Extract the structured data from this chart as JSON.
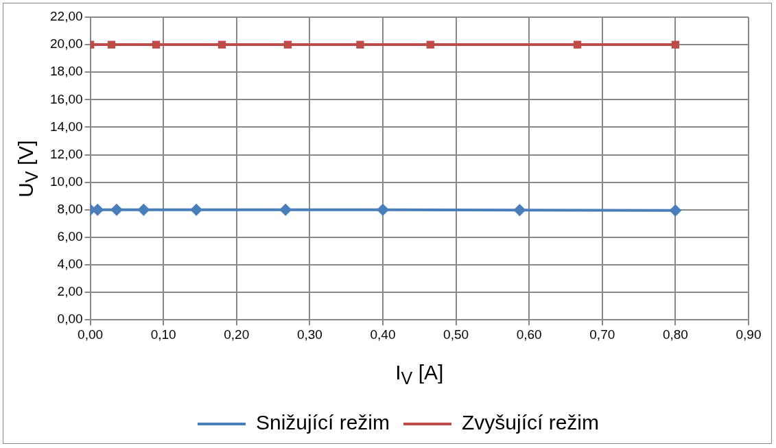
{
  "chart_data": {
    "type": "line",
    "xlabel": "I$_{V}$ [A]",
    "ylabel": "U$_{V}$ [V]",
    "xlim": [
      0,
      0.9
    ],
    "xticks": [
      {
        "value": 0,
        "label": "0,00"
      },
      {
        "value": 0.1,
        "label": "0,10"
      },
      {
        "value": 0.2,
        "label": "0,20"
      },
      {
        "value": 0.3,
        "label": "0,30"
      },
      {
        "value": 0.4,
        "label": "0,40"
      },
      {
        "value": 0.5,
        "label": "0,50"
      },
      {
        "value": 0.6,
        "label": "0,60"
      },
      {
        "value": 0.7,
        "label": "0,70"
      },
      {
        "value": 0.8,
        "label": "0,80"
      },
      {
        "value": 0.9,
        "label": "0,90"
      }
    ],
    "ylim": [
      0,
      22
    ],
    "yticks": [
      {
        "value": 0,
        "label": "0,00"
      },
      {
        "value": 2,
        "label": "2,00"
      },
      {
        "value": 4,
        "label": "4,00"
      },
      {
        "value": 6,
        "label": "6,00"
      },
      {
        "value": 8,
        "label": "8,00"
      },
      {
        "value": 10,
        "label": "10,00"
      },
      {
        "value": 12,
        "label": "12,00"
      },
      {
        "value": 14,
        "label": "14,00"
      },
      {
        "value": 16,
        "label": "16,00"
      },
      {
        "value": 18,
        "label": "18,00"
      },
      {
        "value": 20,
        "label": "20,00"
      },
      {
        "value": 22,
        "label": "22,00"
      }
    ],
    "grid": true,
    "legend": "bottom",
    "line_style": "solid",
    "series": [
      {
        "name": "Snižující režim",
        "color": "#4a7ebb",
        "marker": "diamond",
        "x": [
          0,
          0.01,
          0.036,
          0.073,
          0.145,
          0.267,
          0.4,
          0.587,
          0.8
        ],
        "values": [
          8,
          8,
          8,
          8,
          8,
          8,
          8,
          7.98,
          7.95
        ]
      },
      {
        "name": "Zvyšující režim",
        "color": "#be4b48",
        "marker": "square",
        "x": [
          0,
          0.029,
          0.09,
          0.18,
          0.27,
          0.369,
          0.465,
          0.666,
          0.8
        ],
        "values": [
          20,
          20,
          20,
          20,
          20,
          20,
          20,
          20,
          20
        ]
      }
    ]
  }
}
